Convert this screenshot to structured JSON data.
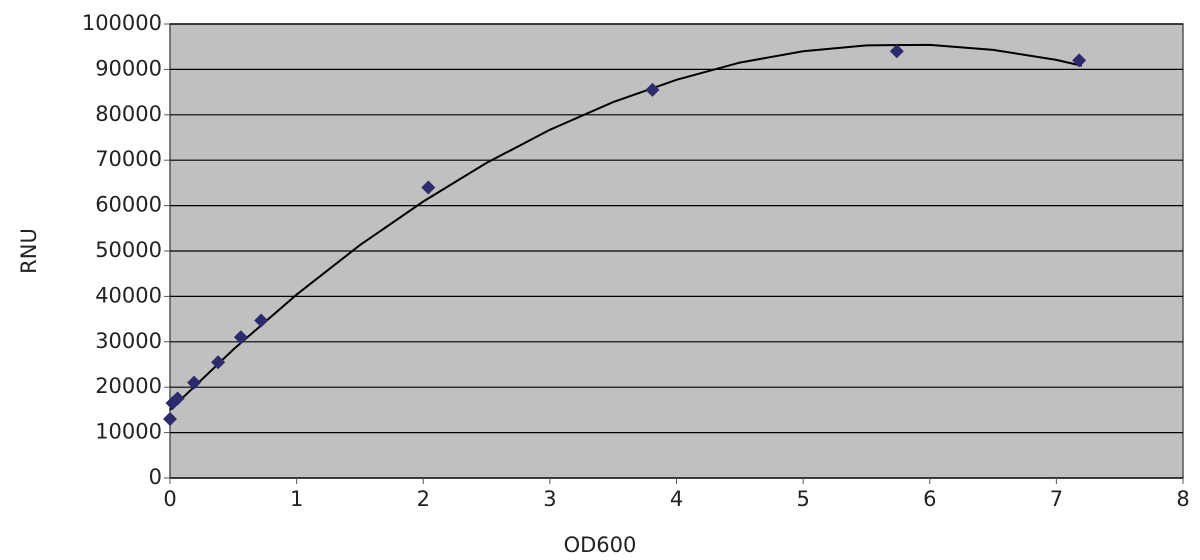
{
  "chart_data": {
    "type": "scatter",
    "x_label": "OD600",
    "y_label": "RNU",
    "x": [
      0,
      0.02,
      0.06,
      0.19,
      0.38,
      0.56,
      0.72,
      2.04,
      3.81,
      5.74,
      7.18
    ],
    "values": [
      13000,
      16500,
      17500,
      21000,
      25500,
      31000,
      34700,
      64000,
      85500,
      94000,
      92000
    ],
    "color": "#2e2a6e",
    "trendline": {
      "color": "#000000",
      "x": [
        0,
        0.5,
        1,
        1.5,
        2,
        2.5,
        3,
        3.5,
        4,
        4.5,
        5,
        5.5,
        6,
        6.5,
        7,
        7.2
      ],
      "values": [
        15000,
        28300,
        40400,
        51300,
        60900,
        69400,
        76700,
        82800,
        87700,
        91500,
        94000,
        95300,
        95400,
        94300,
        92100,
        90800
      ]
    },
    "xlim": [
      0,
      8
    ],
    "xticks": [
      0,
      1,
      2,
      3,
      4,
      5,
      6,
      7,
      8
    ],
    "ylim": [
      0,
      100000
    ],
    "yticks": [
      0,
      10000,
      20000,
      30000,
      40000,
      50000,
      60000,
      70000,
      80000,
      90000,
      100000
    ],
    "grid": true,
    "background": "#c0c0c0"
  }
}
